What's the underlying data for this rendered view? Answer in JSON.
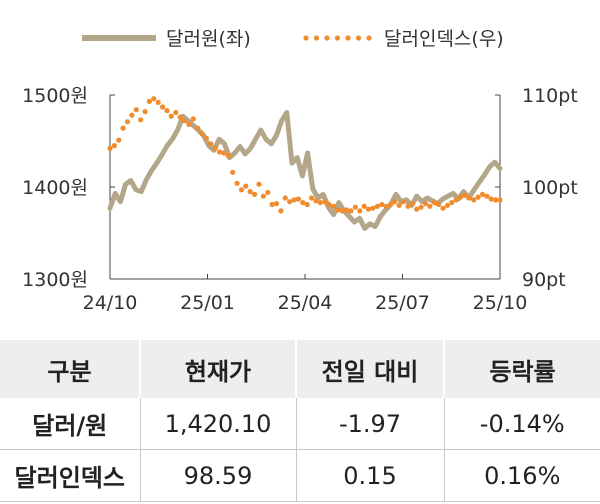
{
  "chart_data": {
    "type": "line",
    "legend": {
      "position": "top",
      "entries": [
        "달러원(좌)",
        "달러인덱스(우)"
      ]
    },
    "x_tick_labels": [
      "24/10",
      "25/01",
      "25/04",
      "25/07",
      "25/10"
    ],
    "y_left": {
      "ticks": [
        "1500원",
        "1400원",
        "1300원"
      ],
      "ylim": [
        1300,
        1500
      ]
    },
    "y_right": {
      "ticks": [
        "110pt",
        "100pt",
        "90pt"
      ],
      "ylim": [
        90,
        110
      ]
    },
    "grid": false,
    "series": [
      {
        "name": "달러원(좌)",
        "axis": "left",
        "color": "#b4a689",
        "style": "solid",
        "values": [
          1377,
          1393,
          1384,
          1403,
          1407,
          1397,
          1395,
          1408,
          1418,
          1426,
          1435,
          1445,
          1452,
          1462,
          1477,
          1472,
          1467,
          1462,
          1456,
          1445,
          1440,
          1452,
          1447,
          1432,
          1437,
          1444,
          1436,
          1442,
          1452,
          1462,
          1452,
          1447,
          1456,
          1472,
          1481,
          1426,
          1432,
          1412,
          1437,
          1398,
          1388,
          1392,
          1378,
          1370,
          1383,
          1374,
          1368,
          1362,
          1366,
          1355,
          1360,
          1357,
          1368,
          1375,
          1381,
          1392,
          1384,
          1386,
          1380,
          1390,
          1384,
          1388,
          1385,
          1382,
          1387,
          1390,
          1393,
          1387,
          1395,
          1388,
          1397,
          1405,
          1413,
          1422,
          1427,
          1420
        ]
      },
      {
        "name": "달러인덱스(우)",
        "axis": "right",
        "color": "#f08c2d",
        "style": "dotted",
        "values": [
          104.2,
          104.5,
          105.1,
          106.4,
          107.1,
          107.8,
          108.4,
          107.3,
          108.2,
          109.3,
          109.6,
          109.2,
          108.7,
          108.3,
          107.7,
          108.1,
          107.6,
          107.2,
          106.8,
          107.4,
          106.4,
          105.8,
          105.3,
          104.7,
          104.2,
          103.8,
          103.7,
          103.4,
          101.6,
          100.4,
          99.7,
          100.1,
          99.5,
          99.2,
          100.3,
          99.0,
          99.4,
          98.1,
          98.2,
          97.4,
          98.8,
          98.4,
          98.6,
          98.7,
          98.3,
          98.1,
          98.8,
          98.5,
          98.3,
          98.4,
          98.1,
          97.9,
          97.5,
          97.4,
          97.5,
          97.4,
          97.8,
          97.4,
          97.9,
          97.6,
          97.7,
          97.9,
          98.1,
          97.9,
          98.1,
          98.4,
          98.0,
          98.4,
          97.9,
          98.2,
          97.6,
          97.8,
          98.2,
          97.9,
          98.3,
          98.1,
          97.7,
          98.0,
          98.3,
          98.6,
          98.9,
          99.1,
          98.8,
          98.6,
          98.9,
          99.2,
          99.0,
          98.7,
          98.6,
          98.59
        ]
      }
    ]
  },
  "table": {
    "headers": [
      "구분",
      "현재가",
      "전일 대비",
      "등락률"
    ],
    "rows": [
      [
        "달러/원",
        "1,420.10",
        "-1.97",
        "-0.14%"
      ],
      [
        "달러인덱스",
        "98.59",
        "0.15",
        "0.16%"
      ]
    ]
  }
}
